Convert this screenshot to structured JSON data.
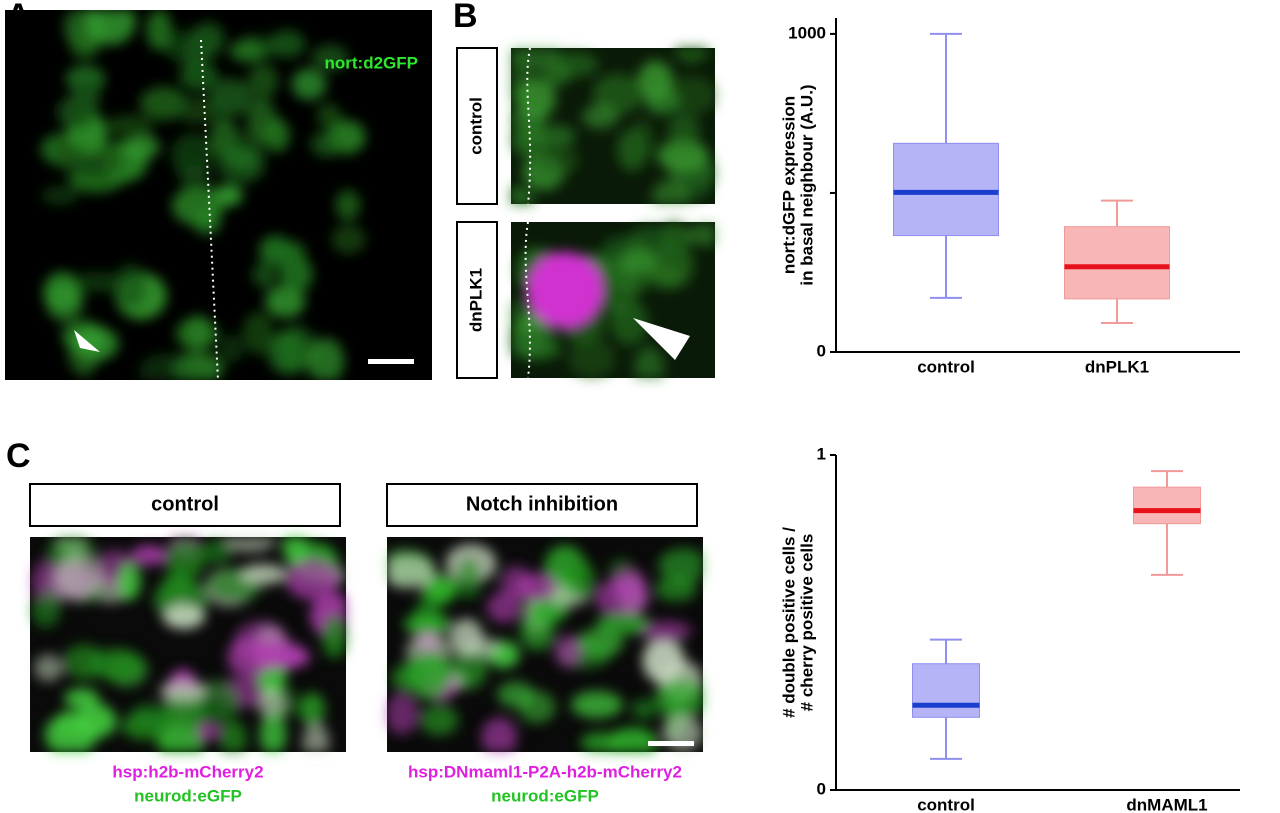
{
  "panels": {
    "A": {
      "label": "A",
      "caption": "nort:d2GFP"
    },
    "B": {
      "label": "B",
      "rows": [
        "control",
        "dnPLK1"
      ]
    },
    "C": {
      "label": "C",
      "titles": [
        "control",
        "Notch inhibition"
      ],
      "captions": [
        [
          "hsp:h2b-mCherry2",
          "neurod:eGFP"
        ],
        [
          "hsp:DNmaml1-P2A-h2b-mCherry2",
          "neurod:eGFP"
        ]
      ]
    }
  },
  "chart_data": [
    {
      "type": "box",
      "y_label": [
        "nort:dGFP expression",
        "in basal neighbour (A.U.)"
      ],
      "categories": [
        "control",
        "dnPLK1"
      ],
      "values": [
        {
          "whisker_low": 170,
          "q1": 366,
          "median": 502,
          "q3": 656,
          "whisker_high": 1000
        },
        {
          "whisker_low": 91,
          "q1": 167,
          "median": 268,
          "q3": 394,
          "whisker_high": 476
        }
      ],
      "colors": [
        "#b4b4f6",
        "#f8b6b6"
      ],
      "whisker_colors": [
        "#8f8ff0",
        "#f29a9a"
      ],
      "median_colors": [
        "#1a3fcf",
        "#e8101a"
      ],
      "ylim": [
        0,
        1050
      ],
      "yticks": [
        0,
        1000
      ],
      "yminorticks": [
        500
      ]
    },
    {
      "type": "box",
      "y_label": [
        "# double positive cells /",
        "# cherry positive cells"
      ],
      "categories": [
        "control",
        "dnMAML1"
      ],
      "values": [
        {
          "whisker_low": 0.093,
          "q1": 0.217,
          "median": 0.253,
          "q3": 0.377,
          "whisker_high": 0.449
        },
        {
          "whisker_low": 0.642,
          "q1": 0.795,
          "median": 0.834,
          "q3": 0.904,
          "whisker_high": 0.952
        }
      ],
      "colors": [
        "#b4b4f6",
        "#f8b6b6"
      ],
      "whisker_colors": [
        "#8f8ff0",
        "#f29a9a"
      ],
      "median_colors": [
        "#1a3fcf",
        "#e8101a"
      ],
      "ylim": [
        0,
        1
      ],
      "yticks": [
        0,
        1
      ]
    }
  ]
}
